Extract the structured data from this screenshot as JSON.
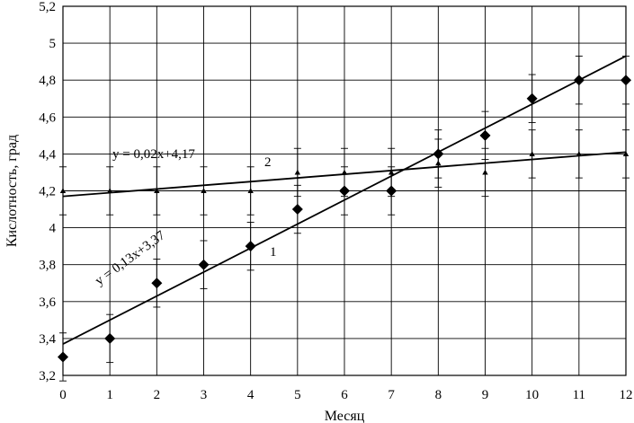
{
  "chart_data": {
    "type": "scatter",
    "title": "",
    "xlabel": "Месяц",
    "ylabel": "Кислотность, град",
    "xlim": [
      0,
      12
    ],
    "ylim": [
      3.2,
      5.2
    ],
    "x_ticks": [
      "0",
      "1",
      "2",
      "3",
      "4",
      "5",
      "6",
      "7",
      "8",
      "9",
      "10",
      "11",
      "12"
    ],
    "y_ticks": [
      "3,2",
      "3,4",
      "3,6",
      "3,8",
      "4",
      "4,2",
      "4,4",
      "4,6",
      "4,8",
      "5",
      "5,2"
    ],
    "grid": true,
    "legend": "none",
    "series": [
      {
        "marker": "diamond",
        "x": [
          0,
          1,
          2,
          3,
          4,
          5,
          6,
          7,
          8,
          9,
          10,
          11,
          12
        ],
        "y": [
          3.3,
          3.4,
          3.7,
          3.8,
          3.9,
          4.1,
          4.2,
          4.2,
          4.4,
          4.5,
          4.7,
          4.8,
          4.8
        ],
        "error": [
          0.13,
          0.13,
          0.13,
          0.13,
          0.13,
          0.13,
          0.13,
          0.13,
          0.13,
          0.13,
          0.13,
          0.13,
          0.13
        ],
        "trendline": {
          "slope": 0.13,
          "intercept": 3.37,
          "label": "y = 0,13x+3,37"
        },
        "tag": "1"
      },
      {
        "marker": "triangle",
        "x": [
          0,
          1,
          2,
          3,
          4,
          5,
          6,
          7,
          8,
          9,
          10,
          11,
          12
        ],
        "y": [
          4.2,
          4.2,
          4.2,
          4.2,
          4.2,
          4.3,
          4.3,
          4.3,
          4.35,
          4.3,
          4.4,
          4.4,
          4.4
        ],
        "error": [
          0.13,
          0.13,
          0.13,
          0.13,
          0.13,
          0.13,
          0.13,
          0.13,
          0.13,
          0.13,
          0.13,
          0.13,
          0.13
        ],
        "trendline": {
          "slope": 0.02,
          "intercept": 4.17,
          "label": "y = 0,02x+4,17"
        },
        "tag": "2"
      }
    ]
  }
}
